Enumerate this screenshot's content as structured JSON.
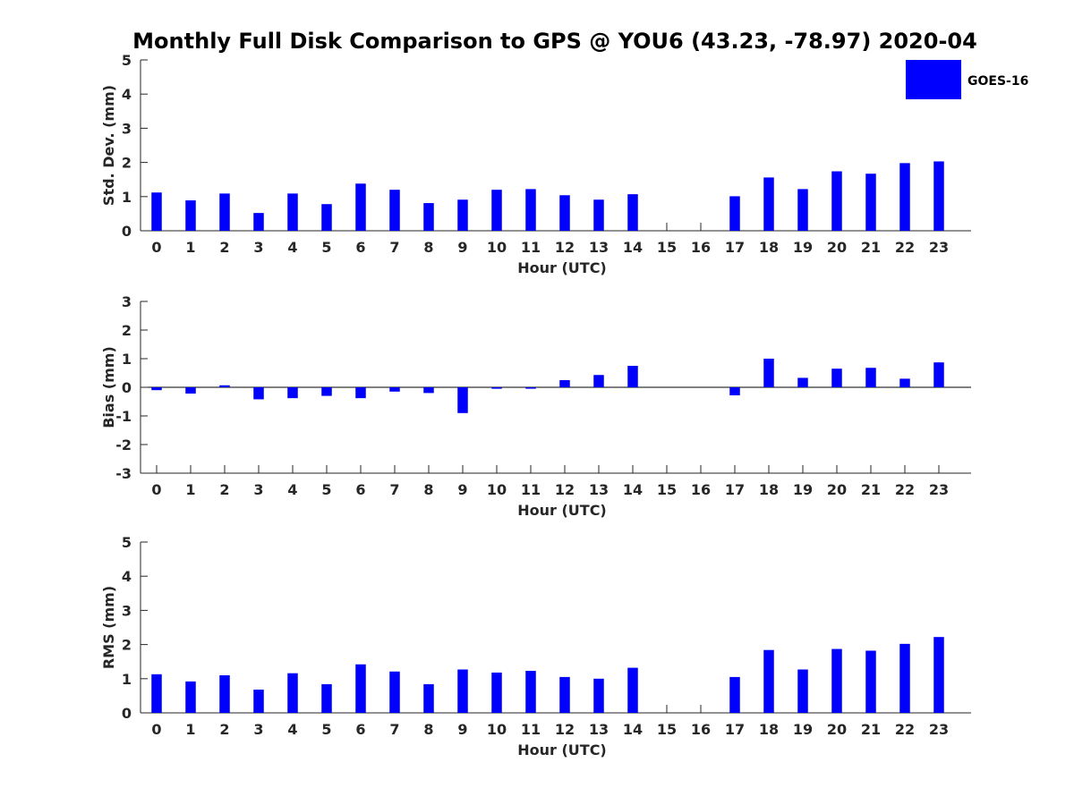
{
  "figure_title": "Monthly Full Disk Comparison to GPS @ YOU6 (43.23, -78.97) 2020-04",
  "legend": {
    "series": "GOES-16",
    "color": "#0000ff"
  },
  "chart_data": [
    {
      "type": "bar",
      "xlabel": "Hour (UTC)",
      "ylabel": "Std. Dev. (mm)",
      "ylim": [
        0,
        5
      ],
      "yticks": [
        "0",
        "1",
        "2",
        "3",
        "4",
        "5"
      ],
      "categories": [
        "0",
        "1",
        "2",
        "3",
        "4",
        "5",
        "6",
        "7",
        "8",
        "9",
        "10",
        "11",
        "12",
        "13",
        "14",
        "15",
        "16",
        "17",
        "18",
        "19",
        "20",
        "21",
        "22",
        "23"
      ],
      "series": [
        {
          "name": "GOES-16",
          "color": "#0000ff",
          "values": [
            1.12,
            0.89,
            1.09,
            0.52,
            1.09,
            0.78,
            1.38,
            1.2,
            0.81,
            0.91,
            1.2,
            1.22,
            1.04,
            0.91,
            1.07,
            null,
            null,
            1.01,
            1.56,
            1.22,
            1.74,
            1.67,
            1.98,
            2.03
          ]
        }
      ]
    },
    {
      "type": "bar",
      "xlabel": "Hour (UTC)",
      "ylabel": "Bias (mm)",
      "ylim": [
        -3,
        3
      ],
      "yticks": [
        "-3",
        "-2",
        "-1",
        "0",
        "1",
        "2",
        "3"
      ],
      "categories": [
        "0",
        "1",
        "2",
        "3",
        "4",
        "5",
        "6",
        "7",
        "8",
        "9",
        "10",
        "11",
        "12",
        "13",
        "14",
        "15",
        "16",
        "17",
        "18",
        "19",
        "20",
        "21",
        "22",
        "23"
      ],
      "series": [
        {
          "name": "GOES-16",
          "color": "#0000ff",
          "values": [
            -0.1,
            -0.22,
            0.07,
            -0.42,
            -0.38,
            -0.3,
            -0.38,
            -0.15,
            -0.2,
            -0.9,
            -0.05,
            -0.05,
            0.25,
            0.43,
            0.75,
            null,
            null,
            -0.28,
            1.0,
            0.33,
            0.65,
            0.68,
            0.3,
            0.87
          ]
        }
      ]
    },
    {
      "type": "bar",
      "xlabel": "Hour (UTC)",
      "ylabel": "RMS (mm)",
      "ylim": [
        0,
        5
      ],
      "yticks": [
        "0",
        "1",
        "2",
        "3",
        "4",
        "5"
      ],
      "categories": [
        "0",
        "1",
        "2",
        "3",
        "4",
        "5",
        "6",
        "7",
        "8",
        "9",
        "10",
        "11",
        "12",
        "13",
        "14",
        "15",
        "16",
        "17",
        "18",
        "19",
        "20",
        "21",
        "22",
        "23"
      ],
      "series": [
        {
          "name": "GOES-16",
          "color": "#0000ff",
          "values": [
            1.13,
            0.92,
            1.1,
            0.68,
            1.16,
            0.84,
            1.42,
            1.21,
            0.84,
            1.27,
            1.18,
            1.23,
            1.05,
            1.0,
            1.32,
            null,
            null,
            1.05,
            1.84,
            1.27,
            1.87,
            1.82,
            2.02,
            2.22
          ]
        }
      ]
    }
  ]
}
